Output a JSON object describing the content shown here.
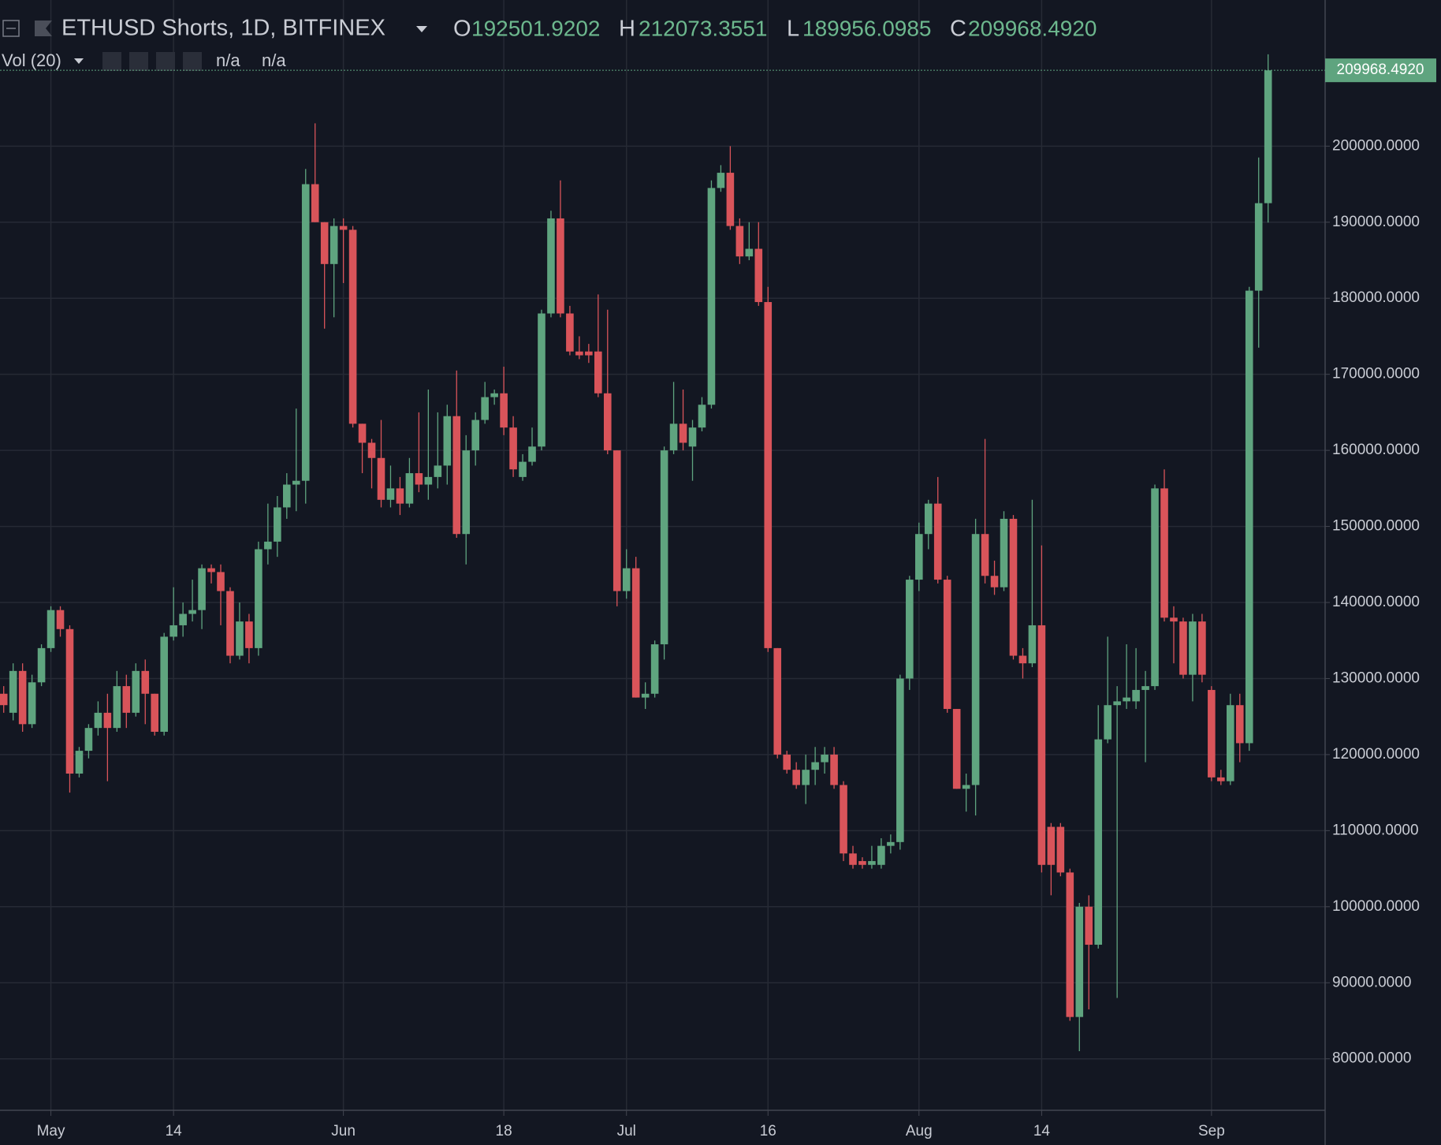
{
  "chart_data": {
    "type": "candlestick",
    "title": "ETHUSD Shorts, 1D, BITFINEX",
    "ohlc_header": [
      {
        "key": "O",
        "text": "192501.9202"
      },
      {
        "key": "H",
        "text": "212073.3551"
      },
      {
        "key": "L",
        "text": "189956.0985"
      },
      {
        "key": "C",
        "text": "209968.4920"
      }
    ],
    "volume_label": "Vol (20)",
    "volume_values": [
      "n/a",
      "n/a"
    ],
    "last_price_label": "209968.4920",
    "up_color": "#5fa47f",
    "down_color": "#d9545a",
    "x": [
      "Apr 26",
      "Apr 27",
      "Apr 28",
      "Apr 29",
      "Apr 30",
      "May 1",
      "May 2",
      "May 3",
      "May 4",
      "May 5",
      "May 6",
      "May 7",
      "May 8",
      "May 9",
      "May 10",
      "May 11",
      "May 12",
      "May 13",
      "May 14",
      "May 15",
      "May 16",
      "May 17",
      "May 18",
      "May 19",
      "May 20",
      "May 21",
      "May 22",
      "May 23",
      "May 24",
      "May 25",
      "May 26",
      "May 27",
      "May 28",
      "May 29",
      "May 30",
      "May 31",
      "Jun 1",
      "Jun 2",
      "Jun 3",
      "Jun 4",
      "Jun 5",
      "Jun 6",
      "Jun 7",
      "Jun 8",
      "Jun 9",
      "Jun 10",
      "Jun 11",
      "Jun 12",
      "Jun 13",
      "Jun 14",
      "Jun 15",
      "Jun 16",
      "Jun 17",
      "Jun 18",
      "Jun 19",
      "Jun 20",
      "Jun 21",
      "Jun 22",
      "Jun 23",
      "Jun 24",
      "Jun 25",
      "Jun 26",
      "Jun 27",
      "Jun 28",
      "Jun 29",
      "Jun 30",
      "Jul 1",
      "Jul 2",
      "Jul 3",
      "Jul 4",
      "Jul 5",
      "Jul 6",
      "Jul 7",
      "Jul 8",
      "Jul 9",
      "Jul 10",
      "Jul 11",
      "Jul 12",
      "Jul 13",
      "Jul 14",
      "Jul 15",
      "Jul 16",
      "Jul 17",
      "Jul 18",
      "Jul 19",
      "Jul 20",
      "Jul 21",
      "Jul 22",
      "Jul 23",
      "Jul 24",
      "Jul 25",
      "Jul 26",
      "Jul 27",
      "Jul 28",
      "Jul 29",
      "Jul 30",
      "Jul 31",
      "Aug 1",
      "Aug 2",
      "Aug 3",
      "Aug 4",
      "Aug 5",
      "Aug 6",
      "Aug 7",
      "Aug 8",
      "Aug 9",
      "Aug 10",
      "Aug 11",
      "Aug 12",
      "Aug 13",
      "Aug 14",
      "Aug 15",
      "Aug 16",
      "Aug 17",
      "Aug 18",
      "Aug 19",
      "Aug 20",
      "Aug 21",
      "Aug 22",
      "Aug 23",
      "Aug 24",
      "Aug 25",
      "Aug 26",
      "Aug 27",
      "Aug 28",
      "Aug 29",
      "Aug 30",
      "Aug 31",
      "Sep 1",
      "Sep 2",
      "Sep 3",
      "Sep 4",
      "Sep 5",
      "Sep 6",
      "Sep 7"
    ],
    "open": [
      128000,
      125500,
      131000,
      124000,
      129500,
      134000,
      139000,
      136500,
      117500,
      120500,
      123500,
      125500,
      123500,
      129000,
      125500,
      131000,
      128000,
      123000,
      135500,
      137000,
      138500,
      139000,
      144500,
      144000,
      141500,
      133000,
      137500,
      134000,
      147000,
      148000,
      152500,
      155500,
      156000,
      195000,
      190000,
      184500,
      189500,
      189000,
      163500,
      161000,
      159000,
      153500,
      155000,
      153000,
      157000,
      155500,
      156500,
      158000,
      164500,
      149000,
      160000,
      164000,
      167000,
      167500,
      163000,
      156500,
      158500,
      160500,
      178000,
      190500,
      178000,
      173000,
      173000,
      173000,
      167500,
      160000,
      141500,
      144500,
      127500,
      128000,
      134500,
      160000,
      163500,
      160500,
      163000,
      166000,
      194500,
      196500,
      189500,
      185500,
      186500,
      179500,
      134000,
      120000,
      118000,
      116000,
      118000,
      119000,
      120000,
      116000,
      107000,
      106000,
      105500,
      105500,
      108000,
      108500,
      130000,
      143000,
      149000,
      153000,
      143000,
      126000,
      115500,
      116000,
      149000,
      143500,
      142000,
      151000,
      133000,
      132000,
      137000,
      110500,
      110500,
      104500,
      85500,
      100000,
      95000,
      122000,
      126500,
      127000,
      127000,
      128500,
      129000,
      155000,
      138000,
      137500,
      130500,
      137500,
      128500,
      117000,
      116500,
      126500,
      121500,
      181000,
      192501.9202
    ],
    "high": [
      129000,
      132000,
      132000,
      130500,
      134500,
      139500,
      139500,
      137000,
      121000,
      124000,
      127000,
      128000,
      131000,
      130500,
      132000,
      132500,
      128000,
      136000,
      142000,
      140000,
      143000,
      145000,
      145000,
      145000,
      142000,
      140000,
      138500,
      148000,
      153000,
      154000,
      157000,
      165500,
      197000,
      203000,
      190000,
      190500,
      190500,
      189500,
      163500,
      161500,
      164000,
      158000,
      156500,
      159000,
      165000,
      168000,
      165000,
      166000,
      170500,
      162000,
      165000,
      169000,
      168000,
      171000,
      164500,
      159500,
      163000,
      178500,
      191500,
      195500,
      179000,
      175000,
      174000,
      180500,
      178500,
      160000,
      147000,
      146000,
      129500,
      135000,
      160500,
      169000,
      168000,
      164000,
      167000,
      195500,
      197500,
      200000,
      190500,
      190000,
      190000,
      181500,
      134000,
      120500,
      119000,
      120000,
      121000,
      121000,
      121000,
      116500,
      108000,
      106500,
      108000,
      109000,
      109500,
      130500,
      143500,
      150500,
      153500,
      156500,
      143500,
      126000,
      117500,
      151000,
      161500,
      145500,
      152000,
      151500,
      134000,
      153500,
      147500,
      111000,
      111000,
      105000,
      100500,
      101500,
      126500,
      135500,
      129000,
      134500,
      134000,
      131000,
      155500,
      157500,
      139500,
      138000,
      138500,
      138500,
      129000,
      118000,
      128000,
      128000,
      181500,
      198500,
      212073.3551
    ],
    "low": [
      125500,
      124500,
      123000,
      123500,
      129000,
      133500,
      135500,
      115000,
      117000,
      119500,
      122500,
      116500,
      123000,
      123500,
      125000,
      124000,
      122500,
      122500,
      135000,
      135500,
      137500,
      136500,
      142500,
      137000,
      132000,
      132500,
      132000,
      133000,
      145000,
      146000,
      151000,
      152000,
      153000,
      190000,
      176000,
      177500,
      182000,
      163000,
      157000,
      155000,
      152500,
      152500,
      151500,
      152500,
      154500,
      153500,
      155000,
      155500,
      148500,
      145000,
      158000,
      163500,
      166000,
      162000,
      156500,
      156000,
      158000,
      160000,
      177500,
      177500,
      172500,
      172000,
      171500,
      167000,
      159500,
      139500,
      140500,
      127500,
      126000,
      127500,
      132500,
      159500,
      160000,
      156000,
      162500,
      165500,
      194000,
      189000,
      184500,
      185000,
      179000,
      133500,
      119500,
      117500,
      115500,
      113500,
      116000,
      117500,
      115500,
      106000,
      105000,
      105000,
      105000,
      105000,
      107000,
      107500,
      128500,
      141500,
      147000,
      142500,
      125500,
      115500,
      112500,
      112000,
      142500,
      141000,
      141500,
      132500,
      130000,
      131500,
      104500,
      101500,
      104000,
      85000,
      81000,
      86500,
      94500,
      121500,
      88000,
      126000,
      126000,
      119000,
      128500,
      137500,
      132000,
      130000,
      127000,
      129500,
      116500,
      116000,
      116000,
      119000,
      120500,
      173500,
      189956.0985
    ],
    "close": [
      126500,
      131000,
      124000,
      129500,
      134000,
      139000,
      136500,
      117500,
      120500,
      123500,
      125500,
      123500,
      129000,
      125500,
      131000,
      128000,
      123000,
      135500,
      137000,
      138500,
      139000,
      144500,
      144000,
      141500,
      133000,
      137500,
      134000,
      147000,
      148000,
      152500,
      155500,
      156000,
      195000,
      190000,
      184500,
      189500,
      189000,
      163500,
      161000,
      159000,
      153500,
      155000,
      153000,
      157000,
      155500,
      156500,
      158000,
      164500,
      149000,
      160000,
      164000,
      167000,
      167500,
      163000,
      157500,
      158500,
      160500,
      178000,
      190500,
      178000,
      173000,
      172500,
      172500,
      167500,
      160000,
      141500,
      144500,
      127500,
      128000,
      134500,
      160000,
      163500,
      161000,
      163000,
      166000,
      194500,
      196500,
      189500,
      185500,
      186500,
      179500,
      134000,
      120000,
      118000,
      116000,
      118000,
      119000,
      120000,
      116000,
      107000,
      105500,
      105500,
      106000,
      108000,
      108500,
      130000,
      143000,
      149000,
      153000,
      143000,
      126000,
      115500,
      116000,
      149000,
      143500,
      142000,
      151000,
      133000,
      132000,
      137000,
      105500,
      105500,
      104500,
      85500,
      100000,
      95000,
      122000,
      126500,
      127000,
      127500,
      128500,
      129000,
      155000,
      138000,
      137500,
      130500,
      137500,
      130500,
      117000,
      116500,
      126500,
      121500,
      181000,
      192500,
      209968.492
    ],
    "ylim": [
      73230,
      219215
    ],
    "yticks": [
      {
        "value": 80000,
        "label": "80000.0000"
      },
      {
        "value": 90000,
        "label": "90000.0000"
      },
      {
        "value": 100000,
        "label": "100000.0000"
      },
      {
        "value": 110000,
        "label": "110000.0000"
      },
      {
        "value": 120000,
        "label": "120000.0000"
      },
      {
        "value": 130000,
        "label": "130000.0000"
      },
      {
        "value": 140000,
        "label": "140000.0000"
      },
      {
        "value": 150000,
        "label": "150000.0000"
      },
      {
        "value": 160000,
        "label": "160000.0000"
      },
      {
        "value": 170000,
        "label": "170000.0000"
      },
      {
        "value": 180000,
        "label": "180000.0000"
      },
      {
        "value": 190000,
        "label": "190000.0000"
      },
      {
        "value": 200000,
        "label": "200000.0000"
      }
    ],
    "xticks": [
      {
        "value": "May 1",
        "label": "May"
      },
      {
        "value": "May 14",
        "label": "14"
      },
      {
        "value": "Jun 1",
        "label": "Jun"
      },
      {
        "value": "Jun 18",
        "label": "18"
      },
      {
        "value": "Jul 1",
        "label": "Jul"
      },
      {
        "value": "Jul 16",
        "label": "16"
      },
      {
        "value": "Aug 1",
        "label": "Aug"
      },
      {
        "value": "Aug 14",
        "label": "14"
      },
      {
        "value": "Sep 1",
        "label": "Sep"
      }
    ],
    "grid": true
  }
}
